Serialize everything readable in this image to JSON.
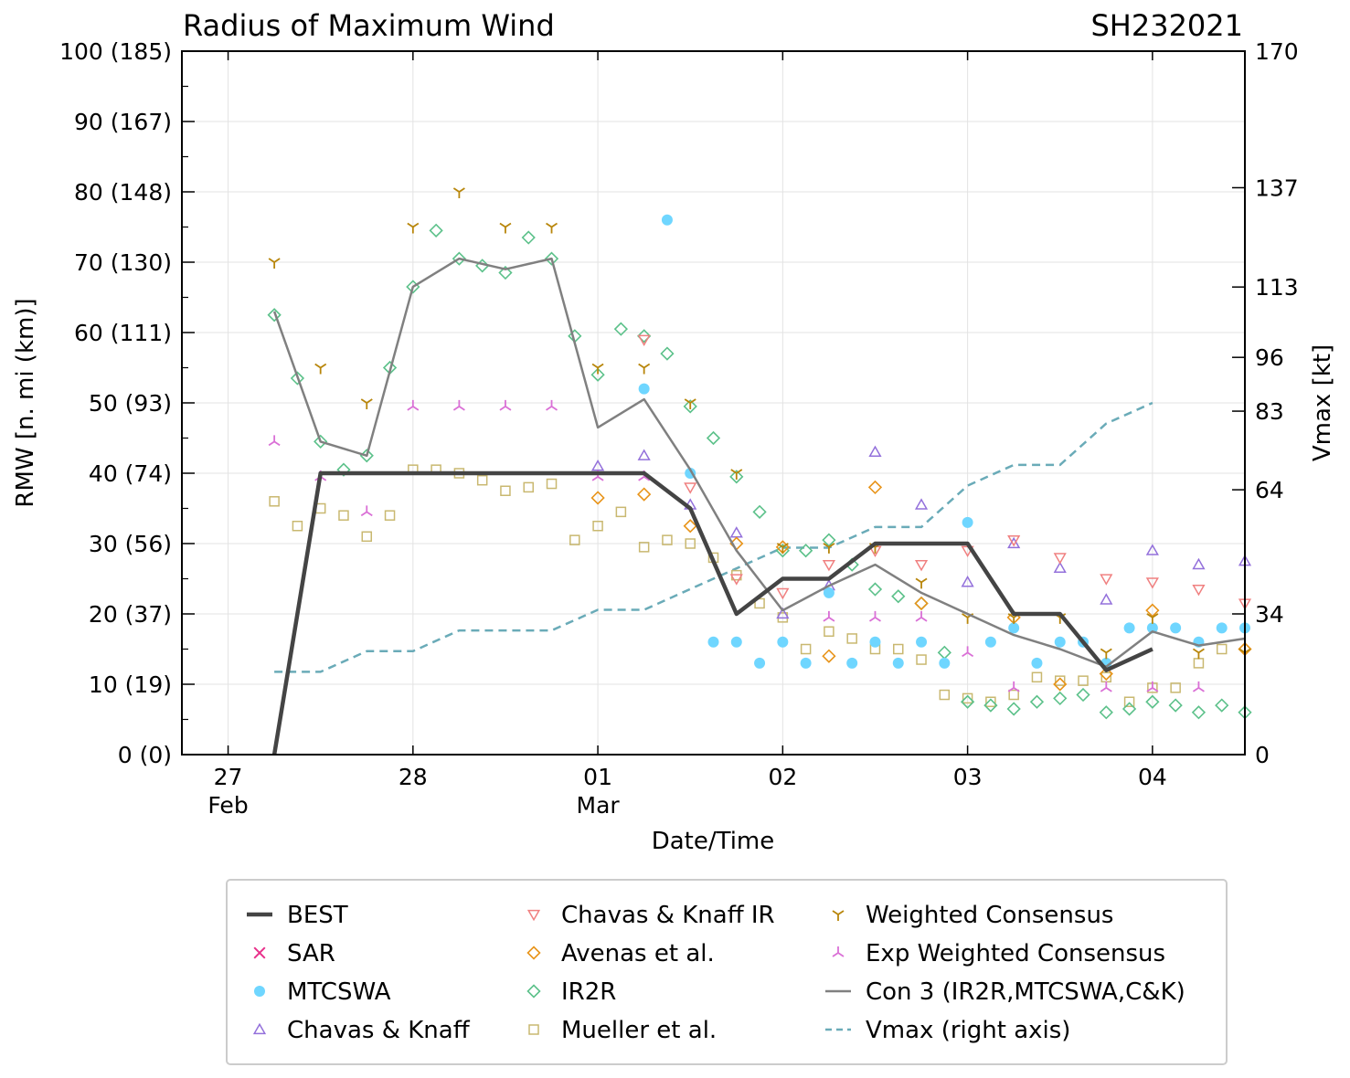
{
  "colors": {
    "best": "#444444",
    "sar": "#e8308a",
    "mtcswa": "#6fd6ff",
    "chavas_knaff": "#9370db",
    "chavas_knaff_ir": "#f08080",
    "avenas": "#e8941a",
    "ir2r": "#5cc18a",
    "mueller": "#c9b870",
    "weighted": "#b8860b",
    "exp_weighted": "#da70d6",
    "con3": "#808080",
    "vmax": "#6aabb8",
    "grid": "#e3e3e3"
  },
  "chart_data": {
    "type": "line",
    "title": "Radius of Maximum Wind",
    "storm_id": "SH232021",
    "xlabel": "Date/Time",
    "ylabel": "RMW [n. mi (km)]",
    "ylabel_right": "Vmax [kt]",
    "xlim": [
      -0.25,
      5.5
    ],
    "ylim": [
      0,
      100
    ],
    "ylim_right": [
      0,
      170
    ],
    "x_unit": "days since 27 Feb 00Z",
    "x_ticks": [
      {
        "x": 0,
        "day": "27",
        "month": "Feb"
      },
      {
        "x": 1,
        "day": "28",
        "month": ""
      },
      {
        "x": 2,
        "day": "01",
        "month": "Mar"
      },
      {
        "x": 3,
        "day": "02",
        "month": ""
      },
      {
        "x": 4,
        "day": "03",
        "month": ""
      },
      {
        "x": 5,
        "day": "04",
        "month": ""
      }
    ],
    "y_ticks": [
      {
        "v": 0,
        "label": "0 (0)"
      },
      {
        "v": 10,
        "label": "10 (19)"
      },
      {
        "v": 20,
        "label": "20 (37)"
      },
      {
        "v": 30,
        "label": "30 (56)"
      },
      {
        "v": 40,
        "label": "40 (74)"
      },
      {
        "v": 50,
        "label": "50 (93)"
      },
      {
        "v": 60,
        "label": "60 (111)"
      },
      {
        "v": 70,
        "label": "70 (130)"
      },
      {
        "v": 80,
        "label": "80 (148)"
      },
      {
        "v": 90,
        "label": "90 (167)"
      },
      {
        "v": 100,
        "label": "100 (185)"
      }
    ],
    "y_right_ticks": [
      {
        "v": 0,
        "label": "0"
      },
      {
        "v": 34,
        "label": "34"
      },
      {
        "v": 64,
        "label": "64"
      },
      {
        "v": 83,
        "label": "83"
      },
      {
        "v": 96,
        "label": "96"
      },
      {
        "v": 113,
        "label": "113"
      },
      {
        "v": 137,
        "label": "137"
      },
      {
        "v": 170,
        "label": "170"
      }
    ],
    "series": {
      "best": {
        "name": "BEST",
        "points": [
          [
            0.25,
            0
          ],
          [
            0.5,
            40
          ],
          [
            1.0,
            40
          ],
          [
            1.5,
            40
          ],
          [
            2.0,
            40
          ],
          [
            2.25,
            40
          ],
          [
            2.5,
            35
          ],
          [
            2.75,
            20
          ],
          [
            3.0,
            25
          ],
          [
            3.25,
            25
          ],
          [
            3.5,
            30
          ],
          [
            3.75,
            30
          ],
          [
            4.0,
            30
          ],
          [
            4.25,
            20
          ],
          [
            4.5,
            20
          ],
          [
            4.75,
            12
          ],
          [
            5.0,
            15
          ]
        ]
      },
      "sar": {
        "name": "SAR",
        "points": []
      },
      "mtcswa": {
        "name": "MTCSWA",
        "points": [
          [
            2.25,
            52
          ],
          [
            2.375,
            76
          ],
          [
            2.5,
            40
          ],
          [
            2.625,
            16
          ],
          [
            2.75,
            16
          ],
          [
            2.875,
            13
          ],
          [
            3.0,
            16
          ],
          [
            3.125,
            13
          ],
          [
            3.25,
            23
          ],
          [
            3.375,
            13
          ],
          [
            3.5,
            16
          ],
          [
            3.625,
            13
          ],
          [
            3.75,
            16
          ],
          [
            3.875,
            13
          ],
          [
            4.0,
            33
          ],
          [
            4.125,
            16
          ],
          [
            4.25,
            18
          ],
          [
            4.375,
            13
          ],
          [
            4.5,
            16
          ],
          [
            4.625,
            16
          ],
          [
            4.75,
            13
          ],
          [
            4.875,
            18
          ],
          [
            5.0,
            18
          ],
          [
            5.125,
            18
          ],
          [
            5.25,
            16
          ],
          [
            5.375,
            18
          ],
          [
            5.5,
            18
          ]
        ]
      },
      "chavas_knaff": {
        "name": "Chavas & Knaff",
        "points": [
          [
            2.0,
            41
          ],
          [
            2.25,
            42.5
          ],
          [
            2.5,
            35.5
          ],
          [
            2.75,
            31.5
          ],
          [
            3.0,
            20
          ],
          [
            3.25,
            24
          ],
          [
            3.5,
            43
          ],
          [
            3.75,
            35.5
          ],
          [
            4.0,
            24.5
          ],
          [
            4.25,
            30
          ],
          [
            4.5,
            26.5
          ],
          [
            4.75,
            22
          ],
          [
            5.0,
            29
          ],
          [
            5.25,
            27
          ],
          [
            5.5,
            27.5
          ]
        ]
      },
      "chavas_knaff_ir": {
        "name": "Chavas & Knaff IR",
        "points": [
          [
            2.25,
            59
          ],
          [
            2.5,
            38
          ],
          [
            2.75,
            25
          ],
          [
            3.0,
            23
          ],
          [
            3.25,
            27
          ],
          [
            3.5,
            29
          ],
          [
            3.75,
            27
          ],
          [
            4.0,
            29
          ],
          [
            4.25,
            30.5
          ],
          [
            4.5,
            28
          ],
          [
            4.75,
            25
          ],
          [
            5.0,
            24.5
          ],
          [
            5.25,
            23.5
          ],
          [
            5.5,
            21.5
          ]
        ]
      },
      "avenas": {
        "name": "Avenas et al.",
        "points": [
          [
            2.0,
            36.5
          ],
          [
            2.25,
            37
          ],
          [
            2.5,
            32.5
          ],
          [
            2.75,
            30
          ],
          [
            3.0,
            29.5
          ],
          [
            3.25,
            14
          ],
          [
            3.5,
            38
          ],
          [
            3.75,
            21.5
          ],
          [
            4.25,
            19.5
          ],
          [
            4.5,
            10
          ],
          [
            4.75,
            11.5
          ],
          [
            5.0,
            20.5
          ],
          [
            5.5,
            15
          ]
        ]
      },
      "ir2r": {
        "name": "IR2R",
        "points": [
          [
            0.25,
            62.5
          ],
          [
            0.375,
            53.5
          ],
          [
            0.5,
            44.5
          ],
          [
            0.625,
            40.5
          ],
          [
            0.75,
            42.5
          ],
          [
            0.875,
            55
          ],
          [
            1.0,
            66.5
          ],
          [
            1.125,
            74.5
          ],
          [
            1.25,
            70.5
          ],
          [
            1.375,
            69.5
          ],
          [
            1.5,
            68.5
          ],
          [
            1.625,
            73.5
          ],
          [
            1.75,
            70.5
          ],
          [
            1.875,
            59.5
          ],
          [
            2.0,
            54
          ],
          [
            2.125,
            60.5
          ],
          [
            2.25,
            59.5
          ],
          [
            2.375,
            57
          ],
          [
            2.5,
            49.5
          ],
          [
            2.625,
            45
          ],
          [
            2.75,
            39.5
          ],
          [
            2.875,
            34.5
          ],
          [
            3.0,
            29
          ],
          [
            3.125,
            29
          ],
          [
            3.25,
            30.5
          ],
          [
            3.375,
            27
          ],
          [
            3.5,
            23.5
          ],
          [
            3.625,
            22.5
          ],
          [
            3.75,
            21.5
          ],
          [
            3.875,
            14.5
          ],
          [
            4.0,
            7.5
          ],
          [
            4.125,
            7
          ],
          [
            4.25,
            6.5
          ],
          [
            4.375,
            7.5
          ],
          [
            4.5,
            8
          ],
          [
            4.625,
            8.5
          ],
          [
            4.75,
            6
          ],
          [
            4.875,
            6.5
          ],
          [
            5.0,
            7.5
          ],
          [
            5.125,
            7
          ],
          [
            5.25,
            6
          ],
          [
            5.375,
            7
          ],
          [
            5.5,
            6
          ]
        ]
      },
      "mueller": {
        "name": "Mueller et al.",
        "points": [
          [
            0.25,
            36
          ],
          [
            0.375,
            32.5
          ],
          [
            0.5,
            35
          ],
          [
            0.625,
            34
          ],
          [
            0.75,
            31
          ],
          [
            0.875,
            34
          ],
          [
            1.0,
            40.5
          ],
          [
            1.125,
            40.5
          ],
          [
            1.25,
            40
          ],
          [
            1.375,
            39
          ],
          [
            1.5,
            37.5
          ],
          [
            1.625,
            38
          ],
          [
            1.75,
            38.5
          ],
          [
            1.875,
            30.5
          ],
          [
            2.0,
            32.5
          ],
          [
            2.125,
            34.5
          ],
          [
            2.25,
            29.5
          ],
          [
            2.375,
            30.5
          ],
          [
            2.5,
            30
          ],
          [
            2.625,
            28
          ],
          [
            2.75,
            25.5
          ],
          [
            2.875,
            21.5
          ],
          [
            3.0,
            19.5
          ],
          [
            3.125,
            15
          ],
          [
            3.25,
            17.5
          ],
          [
            3.375,
            16.5
          ],
          [
            3.5,
            15
          ],
          [
            3.625,
            15
          ],
          [
            3.75,
            13.5
          ],
          [
            3.875,
            8.5
          ],
          [
            4.0,
            8
          ],
          [
            4.125,
            7.5
          ],
          [
            4.25,
            8.5
          ],
          [
            4.375,
            11
          ],
          [
            4.5,
            10.5
          ],
          [
            4.625,
            10.5
          ],
          [
            4.75,
            11
          ],
          [
            4.875,
            7.5
          ],
          [
            5.0,
            9.5
          ],
          [
            5.125,
            9.5
          ],
          [
            5.25,
            13
          ],
          [
            5.375,
            15
          ]
        ]
      },
      "weighted": {
        "name": "Weighted Consensus",
        "points": [
          [
            0.25,
            70
          ],
          [
            0.5,
            55
          ],
          [
            0.75,
            50
          ],
          [
            1.0,
            75
          ],
          [
            1.25,
            80
          ],
          [
            1.5,
            75
          ],
          [
            1.75,
            75
          ],
          [
            2.0,
            55
          ],
          [
            2.25,
            55
          ],
          [
            2.5,
            50
          ],
          [
            2.75,
            40
          ],
          [
            3.0,
            29.5
          ],
          [
            3.25,
            29.5
          ],
          [
            3.5,
            29.5
          ],
          [
            3.75,
            24.5
          ],
          [
            4.0,
            19.5
          ],
          [
            4.25,
            19.5
          ],
          [
            4.5,
            19.5
          ],
          [
            4.75,
            14.5
          ],
          [
            5.0,
            19.5
          ],
          [
            5.25,
            14.5
          ],
          [
            5.5,
            14.5
          ]
        ]
      },
      "exp_weighted": {
        "name": "Exp Weighted Consensus",
        "points": [
          [
            0.25,
            44.5
          ],
          [
            0.5,
            39.5
          ],
          [
            0.75,
            34.5
          ],
          [
            1.0,
            49.5
          ],
          [
            1.25,
            49.5
          ],
          [
            1.5,
            49.5
          ],
          [
            1.75,
            49.5
          ],
          [
            2.0,
            39.5
          ],
          [
            2.25,
            39.5
          ],
          [
            3.25,
            19.5
          ],
          [
            3.5,
            19.5
          ],
          [
            3.75,
            19.5
          ],
          [
            4.0,
            14.5
          ],
          [
            4.25,
            9.5
          ],
          [
            4.75,
            9.5
          ],
          [
            5.0,
            9.5
          ],
          [
            5.25,
            9.5
          ]
        ]
      },
      "con3": {
        "name": "Con 3 (IR2R,MTCSWA,C&K)",
        "points": [
          [
            0.25,
            63
          ],
          [
            0.5,
            44.5
          ],
          [
            0.75,
            42.5
          ],
          [
            1.0,
            66.5
          ],
          [
            1.25,
            70.5
          ],
          [
            1.5,
            69
          ],
          [
            1.75,
            70.5
          ],
          [
            2.0,
            46.5
          ],
          [
            2.25,
            50.5
          ],
          [
            2.5,
            40.5
          ],
          [
            2.75,
            29
          ],
          [
            3.0,
            20.5
          ],
          [
            3.25,
            24
          ],
          [
            3.5,
            27
          ],
          [
            3.75,
            23
          ],
          [
            4.0,
            20
          ],
          [
            4.25,
            17
          ],
          [
            4.5,
            15
          ],
          [
            4.75,
            12.5
          ],
          [
            5.0,
            17.5
          ],
          [
            5.25,
            15.5
          ],
          [
            5.5,
            16.5
          ]
        ]
      },
      "vmax": {
        "name": "Vmax (right axis)",
        "axis": "right",
        "points": [
          [
            0.25,
            20
          ],
          [
            0.5,
            20
          ],
          [
            0.75,
            25
          ],
          [
            1.0,
            25
          ],
          [
            1.25,
            30
          ],
          [
            1.5,
            30
          ],
          [
            1.75,
            30
          ],
          [
            2.0,
            35
          ],
          [
            2.25,
            35
          ],
          [
            2.5,
            40
          ],
          [
            2.75,
            45
          ],
          [
            3.0,
            50
          ],
          [
            3.25,
            50
          ],
          [
            3.5,
            55
          ],
          [
            3.75,
            55
          ],
          [
            4.0,
            65
          ],
          [
            4.25,
            70
          ],
          [
            4.5,
            70
          ],
          [
            4.75,
            80
          ],
          [
            5.0,
            85
          ]
        ]
      }
    },
    "legend": {
      "placement": "below-plot",
      "columns": [
        [
          {
            "key": "best",
            "label": "BEST"
          },
          {
            "key": "sar",
            "label": "SAR"
          },
          {
            "key": "mtcswa",
            "label": "MTCSWA"
          },
          {
            "key": "chavas_knaff",
            "label": "Chavas & Knaff"
          }
        ],
        [
          {
            "key": "chavas_knaff_ir",
            "label": "Chavas & Knaff IR"
          },
          {
            "key": "avenas",
            "label": "Avenas et al."
          },
          {
            "key": "ir2r",
            "label": "IR2R"
          },
          {
            "key": "mueller",
            "label": "Mueller et al."
          }
        ],
        [
          {
            "key": "weighted",
            "label": "Weighted Consensus"
          },
          {
            "key": "exp_weighted",
            "label": "Exp Weighted Consensus"
          },
          {
            "key": "con3",
            "label": "Con 3 (IR2R,MTCSWA,C&K)"
          },
          {
            "key": "vmax",
            "label": "Vmax (right axis)"
          }
        ]
      ]
    },
    "grid": true
  }
}
